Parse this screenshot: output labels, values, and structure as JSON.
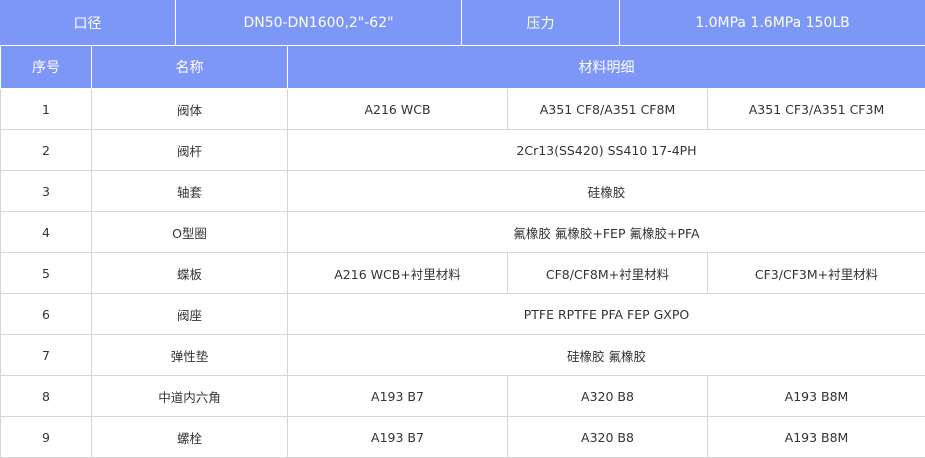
{
  "header": {
    "size_label": "口径",
    "size_value": "DN50-DN1600,2\"-62\"",
    "pressure_label": "压力",
    "pressure_value": "1.0MPa  1.6MPa  150LB"
  },
  "columns": {
    "no": "序号",
    "name": "名称",
    "material": "材料明细"
  },
  "rows": [
    {
      "no": "1",
      "name": "阀体",
      "m": [
        "A216 WCB",
        "A351  CF8/A351 CF8M",
        "A351  CF3/A351 CF3M"
      ]
    },
    {
      "no": "2",
      "name": "阀杆",
      "m": [
        "2Cr13(SS420)  SS410  17-4PH"
      ]
    },
    {
      "no": "3",
      "name": "轴套",
      "m": [
        "硅橡胶"
      ]
    },
    {
      "no": "4",
      "name": "O型圈",
      "m": [
        "氟橡胶  氟橡胶+FEP  氟橡胶+PFA"
      ]
    },
    {
      "no": "5",
      "name": "蝶板",
      "m": [
        "A216 WCB+衬里材料",
        "CF8/CF8M+衬里材料",
        "CF3/CF3M+衬里材料"
      ]
    },
    {
      "no": "6",
      "name": "阀座",
      "m": [
        "PTFE  RPTFE  PFA  FEP  GXPO"
      ]
    },
    {
      "no": "7",
      "name": "弹性垫",
      "m": [
        "硅橡胶  氟橡胶"
      ]
    },
    {
      "no": "8",
      "name": "中道内六角",
      "m": [
        "A193 B7",
        "A320 B8",
        "A193 B8M"
      ]
    },
    {
      "no": "9",
      "name": "螺栓",
      "m": [
        "A193 B7",
        "A320 B8",
        "A193 B8M"
      ]
    }
  ]
}
